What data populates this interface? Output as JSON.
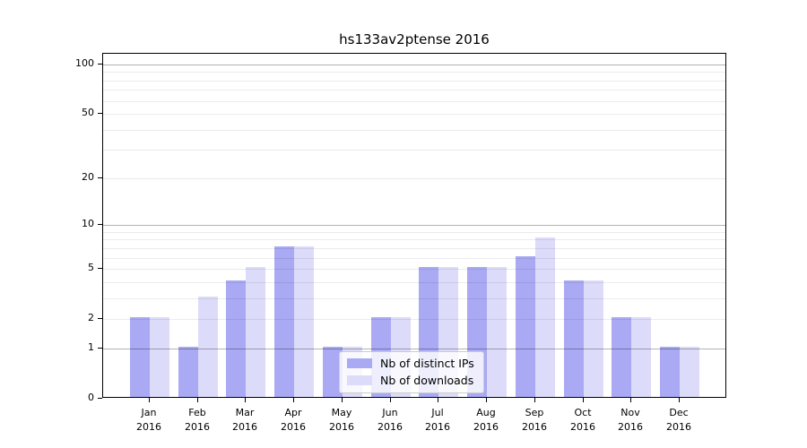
{
  "chart_data": {
    "type": "bar",
    "title": "hs133av2ptense 2016",
    "categories": [
      "Jan\n2016",
      "Feb\n2016",
      "Mar\n2016",
      "Apr\n2016",
      "May\n2016",
      "Jun\n2016",
      "Jul\n2016",
      "Aug\n2016",
      "Sep\n2016",
      "Oct\n2016",
      "Nov\n2016",
      "Dec\n2016"
    ],
    "series": [
      {
        "name": "Nb of distinct IPs",
        "color": "#a9a9f4",
        "values": [
          2,
          1,
          4,
          7,
          1,
          2,
          5,
          5,
          6,
          4,
          2,
          1
        ]
      },
      {
        "name": "Nb of downloads",
        "color": "#dcdcfa",
        "values": [
          2,
          3,
          5,
          7,
          1,
          2,
          5,
          5,
          8,
          4,
          2,
          1
        ]
      }
    ],
    "xlabel": "",
    "ylabel": "",
    "y_axis": {
      "scale": "log1p",
      "tick_values": [
        0,
        1,
        2,
        5,
        10,
        20,
        50,
        100
      ],
      "min": 0,
      "max": 116
    },
    "grid": {
      "major_values": [
        1,
        10,
        100
      ],
      "minor_values": [
        2,
        3,
        4,
        5,
        6,
        7,
        8,
        9,
        20,
        30,
        40,
        50,
        60,
        70,
        80,
        90
      ],
      "position": "above-bars"
    },
    "legend": {
      "position": "lower-center"
    },
    "colors": {
      "background": "#ffffff",
      "spine": "#000000",
      "major_grid": "#b3b3b3",
      "minor_grid": "#ebebeb"
    }
  }
}
